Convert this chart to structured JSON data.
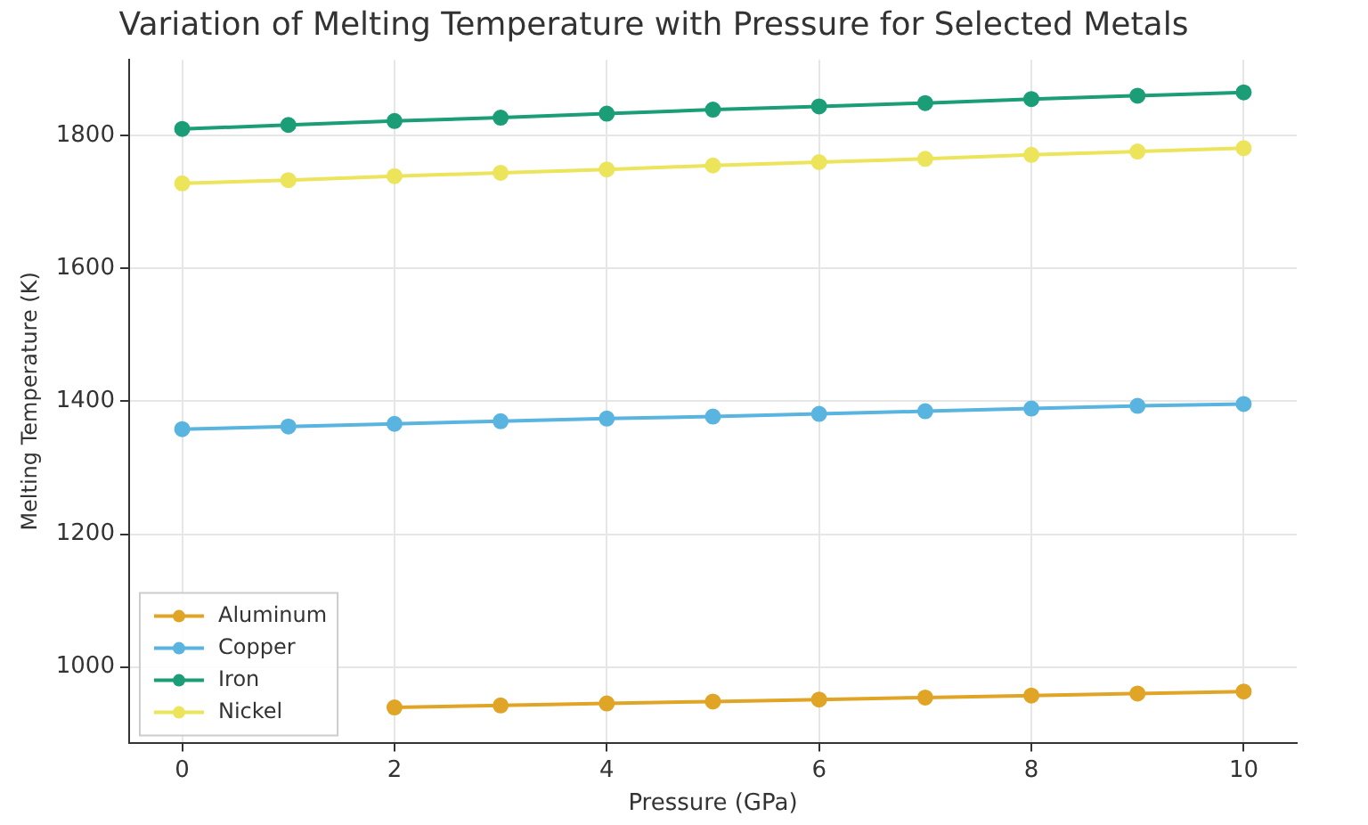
{
  "chart_data": {
    "type": "line",
    "title": "Variation of Melting Temperature with Pressure for Selected Metals",
    "xlabel": "Pressure (GPa)",
    "ylabel": "Melting Temperature (K)",
    "x": [
      0,
      1,
      2,
      3,
      4,
      5,
      6,
      7,
      8,
      9,
      10
    ],
    "series": [
      {
        "name": "Aluminum",
        "color": "#e0a526",
        "values": [
          null,
          null,
          939,
          942,
          945,
          948,
          951,
          954,
          957,
          960,
          963
        ]
      },
      {
        "name": "Copper",
        "color": "#5ab4e0",
        "values": [
          1358,
          1362,
          1366,
          1370,
          1374,
          1377,
          1381,
          1385,
          1389,
          1393,
          1396
        ]
      },
      {
        "name": "Iron",
        "color": "#1b9e77",
        "values": [
          1810,
          1816,
          1822,
          1827,
          1833,
          1839,
          1844,
          1849,
          1855,
          1860,
          1865
        ]
      },
      {
        "name": "Nickel",
        "color": "#ece45a",
        "values": [
          1728,
          1733,
          1739,
          1744,
          1749,
          1755,
          1760,
          1765,
          1771,
          1776,
          1781
        ]
      }
    ],
    "xlim": [
      -0.5,
      10.5
    ],
    "xticks": [
      0,
      2,
      4,
      6,
      8,
      10
    ],
    "ylim": [
      886,
      1914
    ],
    "yticks": [
      1000,
      1200,
      1400,
      1600,
      1800
    ],
    "grid": true,
    "legend": "bottom left",
    "marker": "circle",
    "line_style": "solid"
  }
}
